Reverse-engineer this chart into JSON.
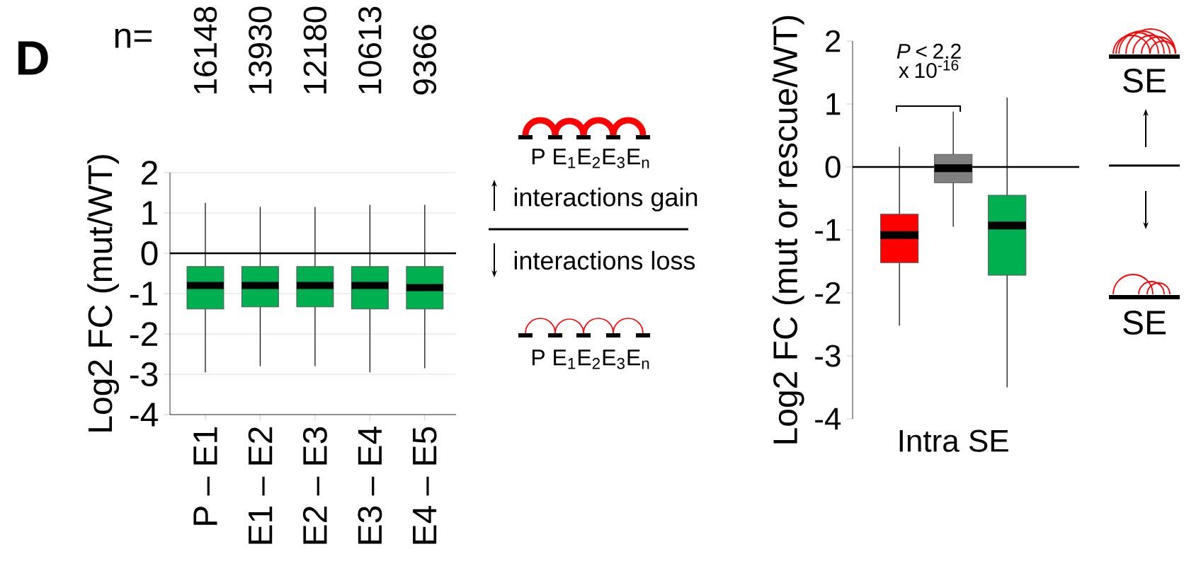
{
  "chart_data": [
    {
      "type": "box",
      "ylabel": "Log2 FC (mut/WT)",
      "categories": [
        "P – E1",
        "E1 – E2",
        "E2 – E3",
        "E3 – E4",
        "E4 – E5"
      ],
      "color": "#00b050",
      "boxes": [
        {
          "low": -2.95,
          "q1": -1.38,
          "median": -0.8,
          "q3": -0.33,
          "high": 1.25
        },
        {
          "low": -2.8,
          "q1": -1.33,
          "median": -0.8,
          "q3": -0.33,
          "high": 1.15
        },
        {
          "low": -2.8,
          "q1": -1.33,
          "median": -0.8,
          "q3": -0.33,
          "high": 1.15
        },
        {
          "low": -2.95,
          "q1": -1.38,
          "median": -0.8,
          "q3": -0.33,
          "high": 1.2
        },
        {
          "low": -2.85,
          "q1": -1.38,
          "median": -0.85,
          "q3": -0.33,
          "high": 1.2
        }
      ],
      "ylim": [
        -4,
        2
      ],
      "yticks": [
        -4,
        -3,
        -2,
        -1,
        0,
        1,
        2
      ],
      "grid": "y",
      "ref_lines": [
        {
          "axis": "y",
          "value": 0,
          "color": "#000000"
        }
      ],
      "annotations": [
        "D",
        "n=",
        "16148",
        "13930",
        "12180",
        "10613",
        "9366",
        "P E$_{1}$E$_{2}$E$_{3}$E$_{n}$",
        "interactions gain",
        "interactions loss",
        "P E$_{1}$E$_{2}$E$_{3}$E$_{n}$"
      ]
    },
    {
      "type": "box",
      "ylabel": "Log2 FC (mut or rescue/WT)",
      "categories": [
        "Intra SE"
      ],
      "series": [
        {
          "color": "#ff0000",
          "boxes": [
            {
              "low": -2.52,
              "q1": -1.52,
              "median": -1.08,
              "q3": -0.75,
              "high": 0.32
            }
          ]
        },
        {
          "color": "#808080",
          "boxes": [
            {
              "low": -0.95,
              "q1": -0.25,
              "median": -0.02,
              "q3": 0.2,
              "high": 0.88
            }
          ]
        },
        {
          "color": "#00b050",
          "boxes": [
            {
              "low": -3.5,
              "q1": -1.72,
              "median": -0.93,
              "q3": -0.45,
              "high": 1.1
            }
          ]
        }
      ],
      "ylim": [
        -4,
        2
      ],
      "yticks": [
        -4,
        -3,
        -2,
        -1,
        0,
        1,
        2
      ],
      "ref_lines": [
        {
          "axis": "y",
          "value": 0,
          "color": "#000000"
        }
      ],
      "annotations": [
        "*P* < 2.2 x 10$^{-16}$",
        "SE",
        "SE"
      ]
    }
  ]
}
